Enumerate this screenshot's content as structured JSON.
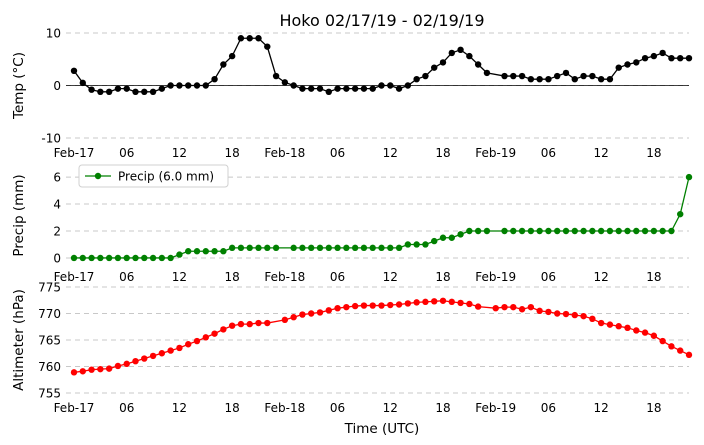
{
  "chart_data": [
    {
      "type": "line",
      "title": "Hoko 02/17/19 - 02/19/19",
      "ylabel": "Temp ($^\\circ$C)",
      "ylim": [
        -10,
        10
      ],
      "yticks": [
        10,
        0,
        -10
      ],
      "xlim": [
        0,
        70
      ],
      "xticks": [
        {
          "x": 0,
          "label": "Feb-17"
        },
        {
          "x": 6,
          "label": "06"
        },
        {
          "x": 12,
          "label": "12"
        },
        {
          "x": 18,
          "label": "18"
        },
        {
          "x": 24,
          "label": "Feb-18"
        },
        {
          "x": 30,
          "label": "06"
        },
        {
          "x": 36,
          "label": "12"
        },
        {
          "x": 42,
          "label": "18"
        },
        {
          "x": 48,
          "label": "Feb-19"
        },
        {
          "x": 54,
          "label": "06"
        },
        {
          "x": 60,
          "label": "12"
        },
        {
          "x": 66,
          "label": "18"
        }
      ],
      "grid": "horizontal-dashed",
      "zero_line": true,
      "series": [
        {
          "color": "#000000",
          "x": [
            0,
            1,
            2,
            3,
            4,
            5,
            6,
            7,
            8,
            9,
            10,
            11,
            12,
            13,
            14,
            15,
            16,
            17,
            18,
            19,
            20,
            21,
            22,
            23,
            24,
            25,
            26,
            27,
            28,
            29,
            30,
            31,
            32,
            33,
            34,
            35,
            36,
            37,
            38,
            39,
            40,
            41,
            42,
            43,
            44,
            45,
            46,
            47,
            49,
            50,
            51,
            52,
            53,
            54,
            55,
            56,
            57,
            58,
            59,
            60,
            61,
            62,
            63,
            64,
            65,
            66,
            67,
            68,
            69,
            70
          ],
          "values": [
            2.8,
            0.5,
            -0.8,
            -1.2,
            -1.2,
            -0.6,
            -0.6,
            -1.2,
            -1.2,
            -1.2,
            -0.6,
            0.0,
            0.0,
            0.0,
            0.0,
            0.0,
            1.2,
            4.0,
            5.6,
            9.0,
            9.0,
            9.0,
            7.4,
            1.8,
            0.6,
            0.0,
            -0.6,
            -0.6,
            -0.6,
            -1.2,
            -0.6,
            -0.6,
            -0.6,
            -0.6,
            -0.6,
            0.0,
            0.0,
            -0.6,
            0.0,
            1.2,
            1.8,
            3.4,
            4.4,
            6.2,
            6.8,
            5.6,
            4.0,
            2.4,
            1.8,
            1.8,
            1.8,
            1.2,
            1.2,
            1.2,
            1.8,
            2.4,
            1.2,
            1.8,
            1.8,
            1.2,
            1.2,
            3.4,
            4.0,
            4.4,
            5.2,
            5.6,
            6.2,
            5.2,
            5.2,
            5.2
          ]
        }
      ]
    },
    {
      "type": "line",
      "ylabel": "Precip (mm)",
      "ylim": [
        -0.3,
        6.6
      ],
      "yticks": [
        6,
        4,
        2,
        0
      ],
      "xlim": [
        0,
        70
      ],
      "xticks": [
        {
          "x": 0,
          "label": "Feb-17"
        },
        {
          "x": 6,
          "label": "06"
        },
        {
          "x": 12,
          "label": "12"
        },
        {
          "x": 18,
          "label": "18"
        },
        {
          "x": 24,
          "label": "Feb-18"
        },
        {
          "x": 30,
          "label": "06"
        },
        {
          "x": 36,
          "label": "12"
        },
        {
          "x": 42,
          "label": "18"
        },
        {
          "x": 48,
          "label": "Feb-19"
        },
        {
          "x": 54,
          "label": "06"
        },
        {
          "x": 60,
          "label": "12"
        },
        {
          "x": 66,
          "label": "18"
        }
      ],
      "grid": "horizontal-dashed",
      "legend": {
        "position": "top-left",
        "label": "Precip (6.0 mm)"
      },
      "series": [
        {
          "name": "Precip (6.0 mm)",
          "color": "#008000",
          "x": [
            0,
            1,
            2,
            3,
            4,
            5,
            6,
            7,
            8,
            9,
            10,
            11,
            12,
            13,
            14,
            15,
            16,
            17,
            18,
            19,
            20,
            21,
            22,
            23,
            25,
            26,
            27,
            28,
            29,
            30,
            31,
            32,
            33,
            34,
            35,
            36,
            37,
            38,
            39,
            40,
            41,
            42,
            43,
            44,
            45,
            46,
            47,
            49,
            50,
            51,
            52,
            53,
            54,
            55,
            56,
            57,
            58,
            59,
            60,
            61,
            62,
            63,
            64,
            65,
            66,
            67,
            68,
            69,
            70
          ],
          "values": [
            0,
            0,
            0,
            0,
            0,
            0,
            0,
            0,
            0,
            0,
            0,
            0,
            0.25,
            0.5,
            0.5,
            0.5,
            0.5,
            0.5,
            0.75,
            0.75,
            0.75,
            0.75,
            0.75,
            0.75,
            0.75,
            0.75,
            0.75,
            0.75,
            0.75,
            0.75,
            0.75,
            0.75,
            0.75,
            0.75,
            0.75,
            0.75,
            0.75,
            1.0,
            1.0,
            1.0,
            1.25,
            1.5,
            1.5,
            1.75,
            2.0,
            2.0,
            2.0,
            2.0,
            2.0,
            2.0,
            2.0,
            2.0,
            2.0,
            2.0,
            2.0,
            2.0,
            2.0,
            2.0,
            2.0,
            2.0,
            2.0,
            2.0,
            2.0,
            2.0,
            2.0,
            2.0,
            2.0,
            3.25,
            6.0
          ]
        }
      ]
    },
    {
      "type": "line",
      "ylabel": "Altimeter (hPa)",
      "xlabel": "Time (UTC)",
      "ylim": [
        755,
        775
      ],
      "yticks": [
        775,
        770,
        765,
        760,
        755
      ],
      "xlim": [
        0,
        70
      ],
      "xticks": [
        {
          "x": 0,
          "label": "Feb-17"
        },
        {
          "x": 6,
          "label": "06"
        },
        {
          "x": 12,
          "label": "12"
        },
        {
          "x": 18,
          "label": "18"
        },
        {
          "x": 24,
          "label": "Feb-18"
        },
        {
          "x": 30,
          "label": "06"
        },
        {
          "x": 36,
          "label": "12"
        },
        {
          "x": 42,
          "label": "18"
        },
        {
          "x": 48,
          "label": "Feb-19"
        },
        {
          "x": 54,
          "label": "06"
        },
        {
          "x": 60,
          "label": "12"
        },
        {
          "x": 66,
          "label": "18"
        }
      ],
      "grid": "horizontal-dashed",
      "series": [
        {
          "color": "#ff0000",
          "x": [
            0,
            1,
            2,
            3,
            4,
            5,
            6,
            7,
            8,
            9,
            10,
            11,
            12,
            13,
            14,
            15,
            16,
            17,
            18,
            19,
            20,
            21,
            22,
            24,
            25,
            26,
            27,
            28,
            29,
            30,
            31,
            32,
            33,
            34,
            35,
            36,
            37,
            38,
            39,
            40,
            41,
            42,
            43,
            44,
            45,
            46,
            48,
            49,
            50,
            51,
            52,
            53,
            54,
            55,
            56,
            57,
            58,
            59,
            60,
            61,
            62,
            63,
            64,
            65,
            66,
            67,
            68,
            69,
            70
          ],
          "values": [
            758.9,
            759.1,
            759.4,
            759.5,
            759.6,
            760.1,
            760.5,
            761.0,
            761.5,
            762.0,
            762.5,
            763.0,
            763.5,
            764.2,
            764.8,
            765.5,
            766.2,
            767.0,
            767.7,
            768.0,
            768.0,
            768.2,
            768.2,
            768.8,
            769.3,
            769.8,
            770.0,
            770.2,
            770.6,
            771.0,
            771.2,
            771.4,
            771.5,
            771.5,
            771.5,
            771.6,
            771.7,
            771.9,
            772.1,
            772.2,
            772.3,
            772.4,
            772.2,
            772.0,
            771.8,
            771.3,
            771.0,
            771.2,
            771.2,
            770.8,
            771.2,
            770.5,
            770.3,
            770.0,
            769.9,
            769.7,
            769.5,
            769.0,
            768.2,
            767.9,
            767.6,
            767.3,
            766.8,
            766.4,
            765.8,
            764.8,
            763.8,
            763.0,
            762.2
          ]
        }
      ]
    }
  ]
}
